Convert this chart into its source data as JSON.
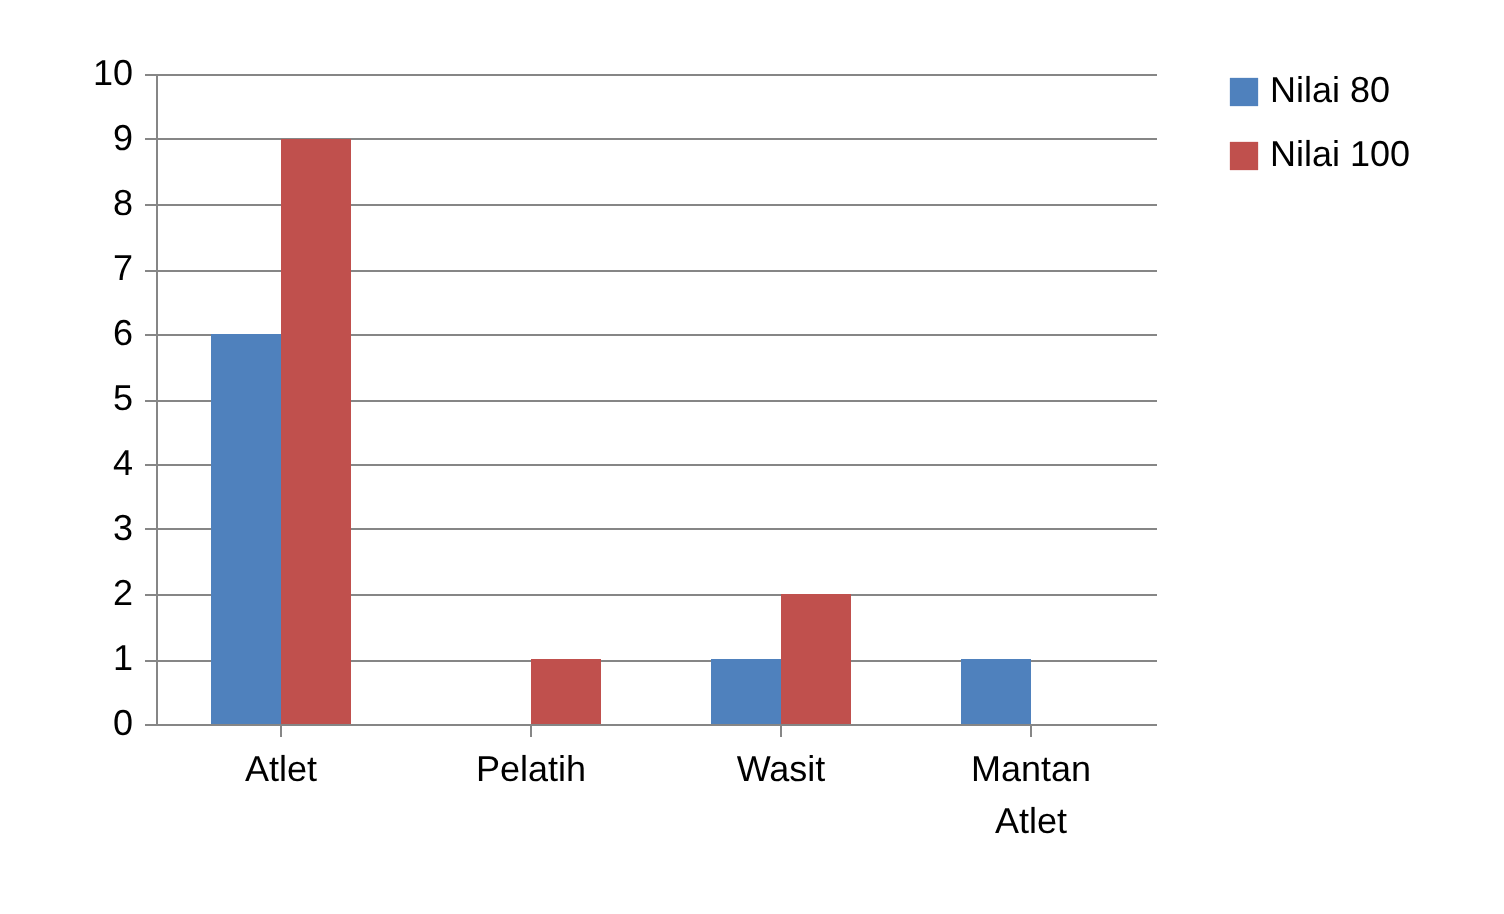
{
  "chart_data": {
    "type": "bar",
    "categories": [
      "Atlet",
      "Pelatih",
      "Wasit",
      "Mantan Atlet"
    ],
    "series": [
      {
        "name": "Nilai 80",
        "color": "#4f81bd",
        "values": [
          6,
          0,
          1,
          1
        ]
      },
      {
        "name": "Nilai 100",
        "color": "#c0504d",
        "values": [
          9,
          1,
          2,
          0
        ]
      }
    ],
    "ylim": [
      0,
      10
    ],
    "yticks": [
      0,
      1,
      2,
      3,
      4,
      5,
      6,
      7,
      8,
      9,
      10
    ],
    "grid": "y",
    "legend": "right"
  }
}
